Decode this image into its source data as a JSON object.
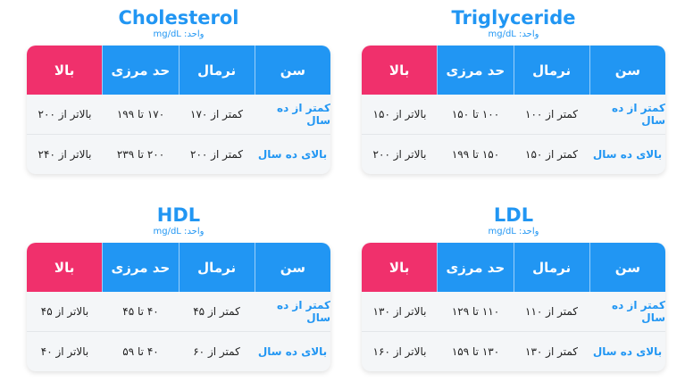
{
  "headers": [
    "سن",
    "نرمال",
    "حد مرزی",
    "بالا"
  ],
  "unit": "mg/dL :واحد",
  "panels": {
    "cholesterol": {
      "title": "Cholesterol",
      "rows": [
        [
          "کمتر از ده سال",
          "کمتر از ۱۷۰",
          "۱۷۰ تا ۱۹۹",
          "بالاتر از ۲۰۰"
        ],
        [
          "بالای ده سال",
          "کمتر از ۲۰۰",
          "۲۰۰ تا ۲۳۹",
          "بالاتر از ۲۴۰"
        ]
      ]
    },
    "triglyceride": {
      "title": "Triglyceride",
      "rows": [
        [
          "کمتر از ده سال",
          "کمتر از ۱۰۰",
          "۱۰۰ تا ۱۵۰",
          "بالاتر از ۱۵۰"
        ],
        [
          "بالای ده سال",
          "کمتر از ۱۵۰",
          "۱۵۰ تا ۱۹۹",
          "بالاتر از ۲۰۰"
        ]
      ]
    },
    "hdl": {
      "title": "HDL",
      "rows": [
        [
          "کمتر از ده سال",
          "کمتر از ۴۵",
          "۴۰ تا ۴۵",
          "بالاتر از ۴۵"
        ],
        [
          "بالای ده سال",
          "کمتر از ۶۰",
          "۴۰ تا ۵۹",
          "بالاتر از ۴۰"
        ]
      ]
    },
    "ldl": {
      "title": "LDL",
      "rows": [
        [
          "کمتر از ده سال",
          "کمتر از ۱۱۰",
          "۱۱۰ تا ۱۲۹",
          "بالاتر از ۱۳۰"
        ],
        [
          "بالای ده سال",
          "کمتر از ۱۳۰",
          "۱۳۰ تا ۱۵۹",
          "بالاتر از ۱۶۰"
        ]
      ]
    }
  }
}
